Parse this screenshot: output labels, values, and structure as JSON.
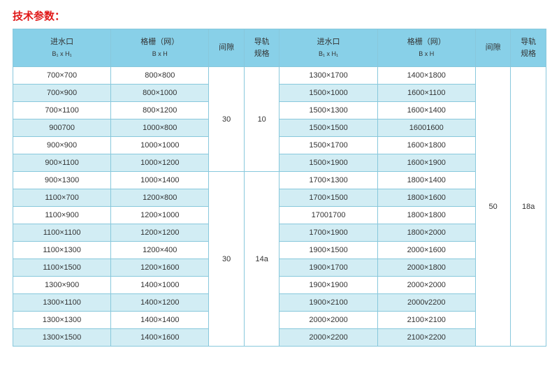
{
  "title": "技术参数：",
  "colors": {
    "title_color": "#e01a1a",
    "header_bg": "#88d0e8",
    "row_even_bg": "#ffffff",
    "row_odd_bg": "#d2edf4",
    "merged_bg": "#ffffff",
    "border_color": "#88c8dc"
  },
  "headers": {
    "col1_l1": "进水口",
    "col1_l2": "B₁ x H₁",
    "col2_l1": "格栅（网）",
    "col2_l2": "B x H",
    "col3": "间隙",
    "col4_l1": "导轨",
    "col4_l2": "规格",
    "col5_l1": "进水口",
    "col5_l2": "B₁ x H₁",
    "col6_l1": "格栅（网）",
    "col6_l2": "B x H",
    "col7": "间隙",
    "col8_l1": "导轨",
    "col8_l2": "规格"
  },
  "gap_a": "30",
  "rail_a": "10",
  "gap_b": "30",
  "rail_b": "14a",
  "gap_right": "50",
  "rail_right": "18a",
  "rows": [
    {
      "c1": "700×700",
      "c2": "800×800",
      "c5": "1300×1700",
      "c6": "1400×1800"
    },
    {
      "c1": "700×900",
      "c2": "800×1000",
      "c5": "1500×1000",
      "c6": "1600×1100"
    },
    {
      "c1": "700×1100",
      "c2": "800×1200",
      "c5": "1500×1300",
      "c6": "1600×1400"
    },
    {
      "c1": "900700",
      "c2": "1000×800",
      "c5": "1500×1500",
      "c6": "16001600"
    },
    {
      "c1": "900×900",
      "c2": "1000×1000",
      "c5": "1500×1700",
      "c6": "1600×1800"
    },
    {
      "c1": "900×1100",
      "c2": "1000×1200",
      "c5": "1500×1900",
      "c6": "1600×1900"
    },
    {
      "c1": "900×1300",
      "c2": "1000×1400",
      "c5": "1700×1300",
      "c6": "1800×1400"
    },
    {
      "c1": "1100×700",
      "c2": "1200×800",
      "c5": "1700×1500",
      "c6": "1800×1600"
    },
    {
      "c1": "1100×900",
      "c2": "1200×1000",
      "c5": "17001700",
      "c6": "1800×1800"
    },
    {
      "c1": "1100×1100",
      "c2": "1200×1200",
      "c5": "1700×1900",
      "c6": "1800×2000"
    },
    {
      "c1": "1100×1300",
      "c2": "1200×400",
      "c5": "1900×1500",
      "c6": "2000×1600"
    },
    {
      "c1": "1100×1500",
      "c2": "1200×1600",
      "c5": "1900×1700",
      "c6": "2000×1800"
    },
    {
      "c1": "1300×900",
      "c2": "1400×1000",
      "c5": "1900×1900",
      "c6": "2000×2000"
    },
    {
      "c1": "1300×1100",
      "c2": "1400×1200",
      "c5": "1900×2100",
      "c6": "2000v2200"
    },
    {
      "c1": "1300×1300",
      "c2": "1400×1400",
      "c5": "2000×2000",
      "c6": "2100×2100"
    },
    {
      "c1": "1300×1500",
      "c2": "1400×1600",
      "c5": "2000×2200",
      "c6": "2100×2200"
    }
  ]
}
